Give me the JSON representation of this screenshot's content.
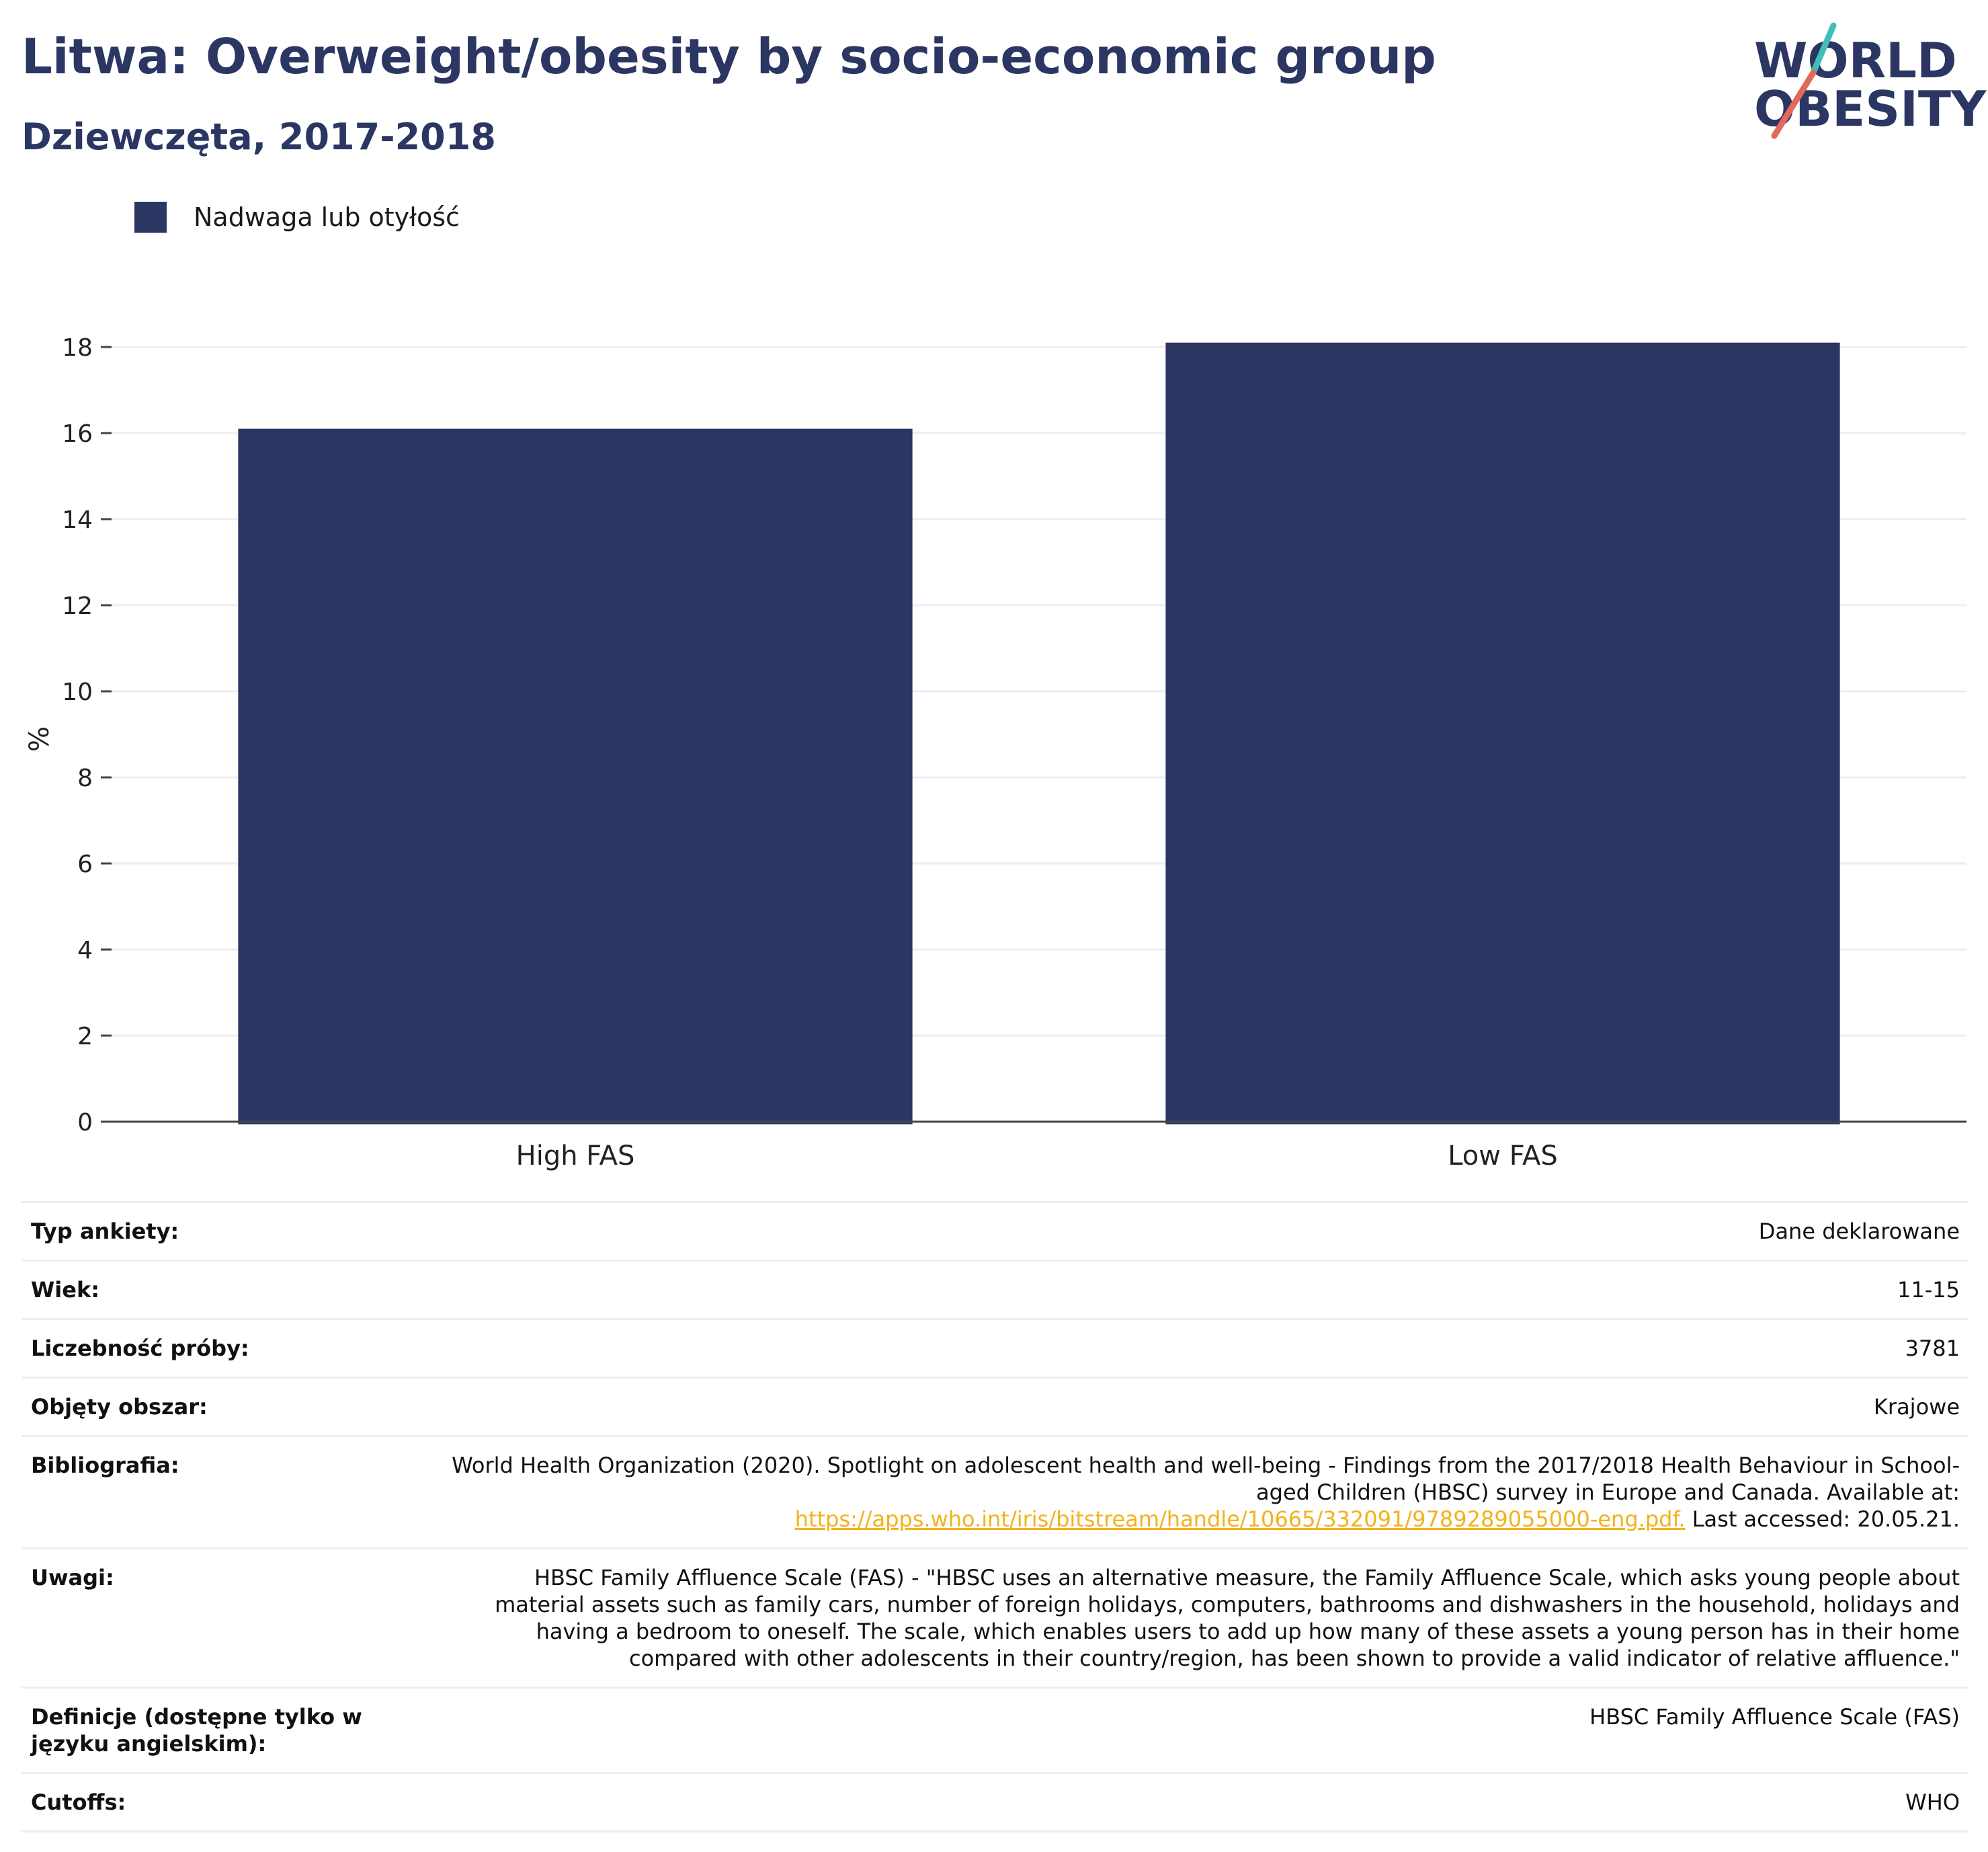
{
  "header": {
    "title": "Litwa: Overweight/obesity by socio-economic group",
    "subtitle": "Dziewczęta, 2017-2018"
  },
  "logo": {
    "line1": "WORLD",
    "line2": "OBESITY",
    "slash_colors": [
      "#3fbfb8",
      "#e2695b"
    ]
  },
  "colors": {
    "bar": "#2b3663",
    "title": "#2b3663",
    "link": "#f2b21b",
    "grid": "#eceef3"
  },
  "chart_data": {
    "type": "bar",
    "title": "Litwa: Overweight/obesity by socio-economic group",
    "subtitle": "Dziewczęta, 2017-2018",
    "categories": [
      "High FAS",
      "Low FAS"
    ],
    "series": [
      {
        "name": "Nadwaga lub otyłość",
        "values": [
          16.1,
          18.1
        ],
        "color": "#2b3663"
      }
    ],
    "xlabel": "",
    "ylabel": "%",
    "ylim": [
      0,
      18
    ],
    "yticks": [
      0,
      2,
      4,
      6,
      8,
      10,
      12,
      14,
      16,
      18
    ],
    "grid": true,
    "legend_position": "top-left"
  },
  "info": {
    "rows": [
      {
        "label": "Typ ankiety:",
        "value": "Dane deklarowane"
      },
      {
        "label": "Wiek:",
        "value": "11-15"
      },
      {
        "label": "Liczebność próby:",
        "value": "3781"
      },
      {
        "label": "Objęty obszar:",
        "value": "Krajowe"
      },
      {
        "label": "Bibliografia:",
        "value": "World Health Organization (2020). Spotlight on adolescent health and well-being - Findings from the 2017/2018 Health Behaviour in School-aged Children (HBSC) survey in Europe and Canada. Available at:",
        "link": "https://apps.who.int/iris/bitstream/handle/10665/332091/9789289055000-eng.pdf.",
        "after": " Last accessed: 20.05.21."
      },
      {
        "label": "Uwagi:",
        "value": "HBSC Family Affluence Scale (FAS) - \"HBSC uses an alternative measure, the Family Affluence Scale, which asks young people about material assets such as family cars, number of foreign holidays, computers, bathrooms and dishwashers in the household, holidays and having a bedroom to oneself. The scale, which enables users to add up how many of these assets a young person has in their home compared with other adolescents in their country/region, has been shown to provide a valid indicator of relative affluence.\""
      },
      {
        "label": "Definicje (dostępne tylko w języku angielskim):",
        "value": "HBSC Family Affluence Scale (FAS)"
      },
      {
        "label": "Cutoffs:",
        "value": "WHO"
      }
    ]
  }
}
